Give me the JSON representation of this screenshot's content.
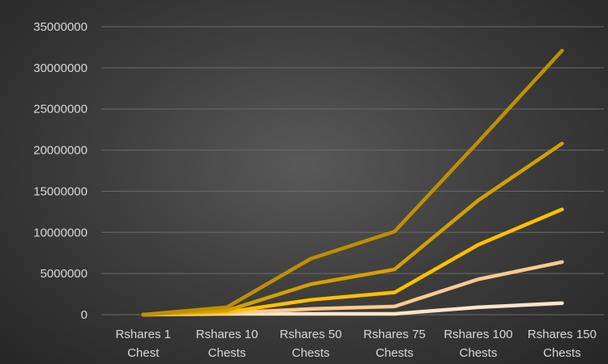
{
  "chart_data": {
    "type": "line",
    "title": "",
    "xlabel": "",
    "ylabel": "",
    "categories": [
      [
        "Rshares 1",
        "Chest"
      ],
      [
        "Rshares 10",
        "Chests"
      ],
      [
        "Rshares 50",
        "Chests"
      ],
      [
        "Rshares 75",
        "Chests"
      ],
      [
        "Rshares 100",
        "Chests"
      ],
      [
        "Rshares 150",
        "Chests"
      ]
    ],
    "ylim": [
      0,
      35000000
    ],
    "yticks": [
      0,
      5000000,
      10000000,
      15000000,
      20000000,
      25000000,
      30000000,
      35000000
    ],
    "ytick_labels": [
      "0",
      "5000000",
      "10000000",
      "15000000",
      "20000000",
      "25000000",
      "30000000",
      "35000000"
    ],
    "grid": true,
    "legend": "none",
    "series": [
      {
        "color": "#bf9000",
        "values": [
          0,
          900000,
          6800000,
          10100000,
          21000000,
          32100000
        ]
      },
      {
        "color": "#d4a000",
        "values": [
          0,
          500000,
          3700000,
          5500000,
          13900000,
          20800000
        ]
      },
      {
        "color": "#ffc000",
        "values": [
          0,
          300000,
          1800000,
          2700000,
          8500000,
          12800000
        ]
      },
      {
        "color": "#f8cb8e",
        "values": [
          0,
          200000,
          700000,
          1000000,
          4300000,
          6400000
        ]
      },
      {
        "color": "#fbe5c8",
        "values": [
          0,
          100000,
          100000,
          100000,
          900000,
          1400000
        ]
      }
    ]
  }
}
